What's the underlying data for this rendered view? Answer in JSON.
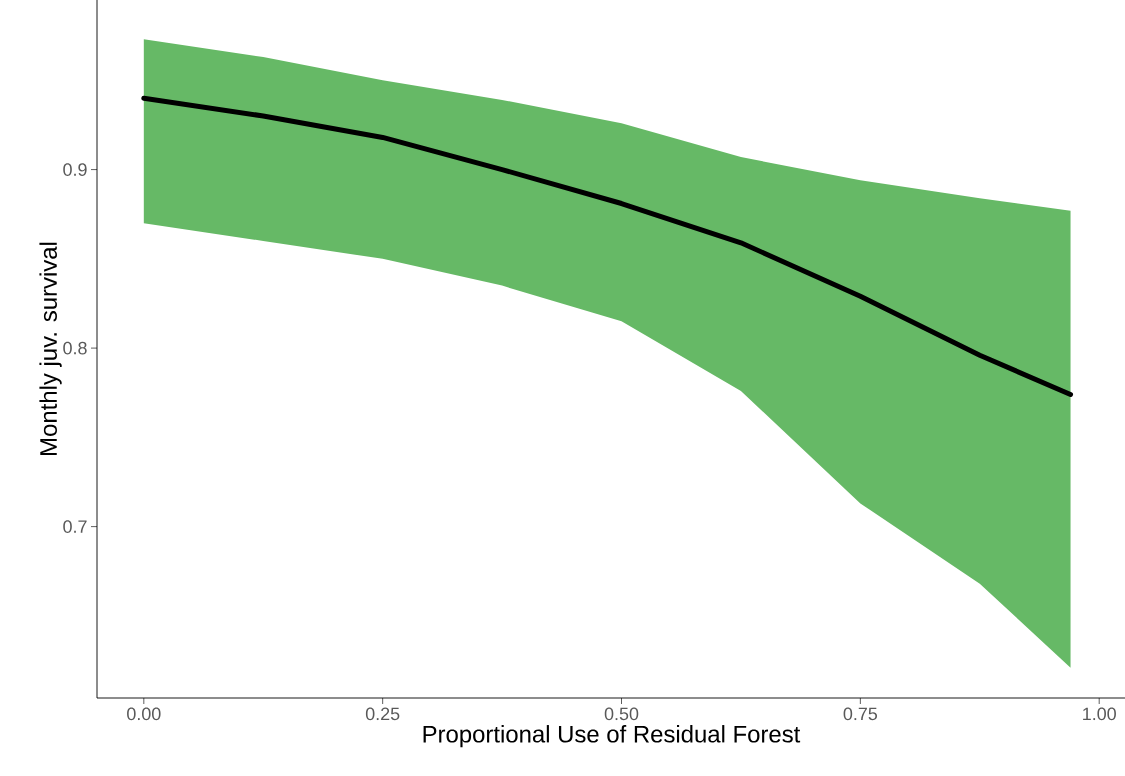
{
  "chart_data": {
    "type": "line",
    "xlabel": "Proportional Use of Residual Forest",
    "ylabel": "Monthly juv. survival",
    "x": [
      0,
      0.125,
      0.25,
      0.375,
      0.5,
      0.625,
      0.75,
      0.875,
      0.97
    ],
    "series": [
      {
        "color": "#000000",
        "values": [
          0.94,
          0.93,
          0.918,
          0.9,
          0.881,
          0.859,
          0.829,
          0.796,
          0.774
        ],
        "lower": [
          0.87,
          0.86,
          0.85,
          0.835,
          0.815,
          0.776,
          0.713,
          0.668,
          0.621
        ],
        "upper": [
          0.973,
          0.963,
          0.95,
          0.939,
          0.926,
          0.907,
          0.894,
          0.884,
          0.877
        ]
      }
    ],
    "xlim": [
      -0.049,
      1.027
    ],
    "ylim": [
      0.604,
      0.995
    ],
    "xticks": [
      {
        "value": 0,
        "label": "0.00"
      },
      {
        "value": 0.25,
        "label": "0.25"
      },
      {
        "value": 0.5,
        "label": "0.50"
      },
      {
        "value": 0.75,
        "label": "0.75"
      },
      {
        "value": 1,
        "label": "1.00"
      }
    ],
    "yticks": [
      0.7,
      0.8,
      0.9
    ],
    "grid": false,
    "legend": false,
    "marker": "none",
    "line_style": "solid"
  }
}
